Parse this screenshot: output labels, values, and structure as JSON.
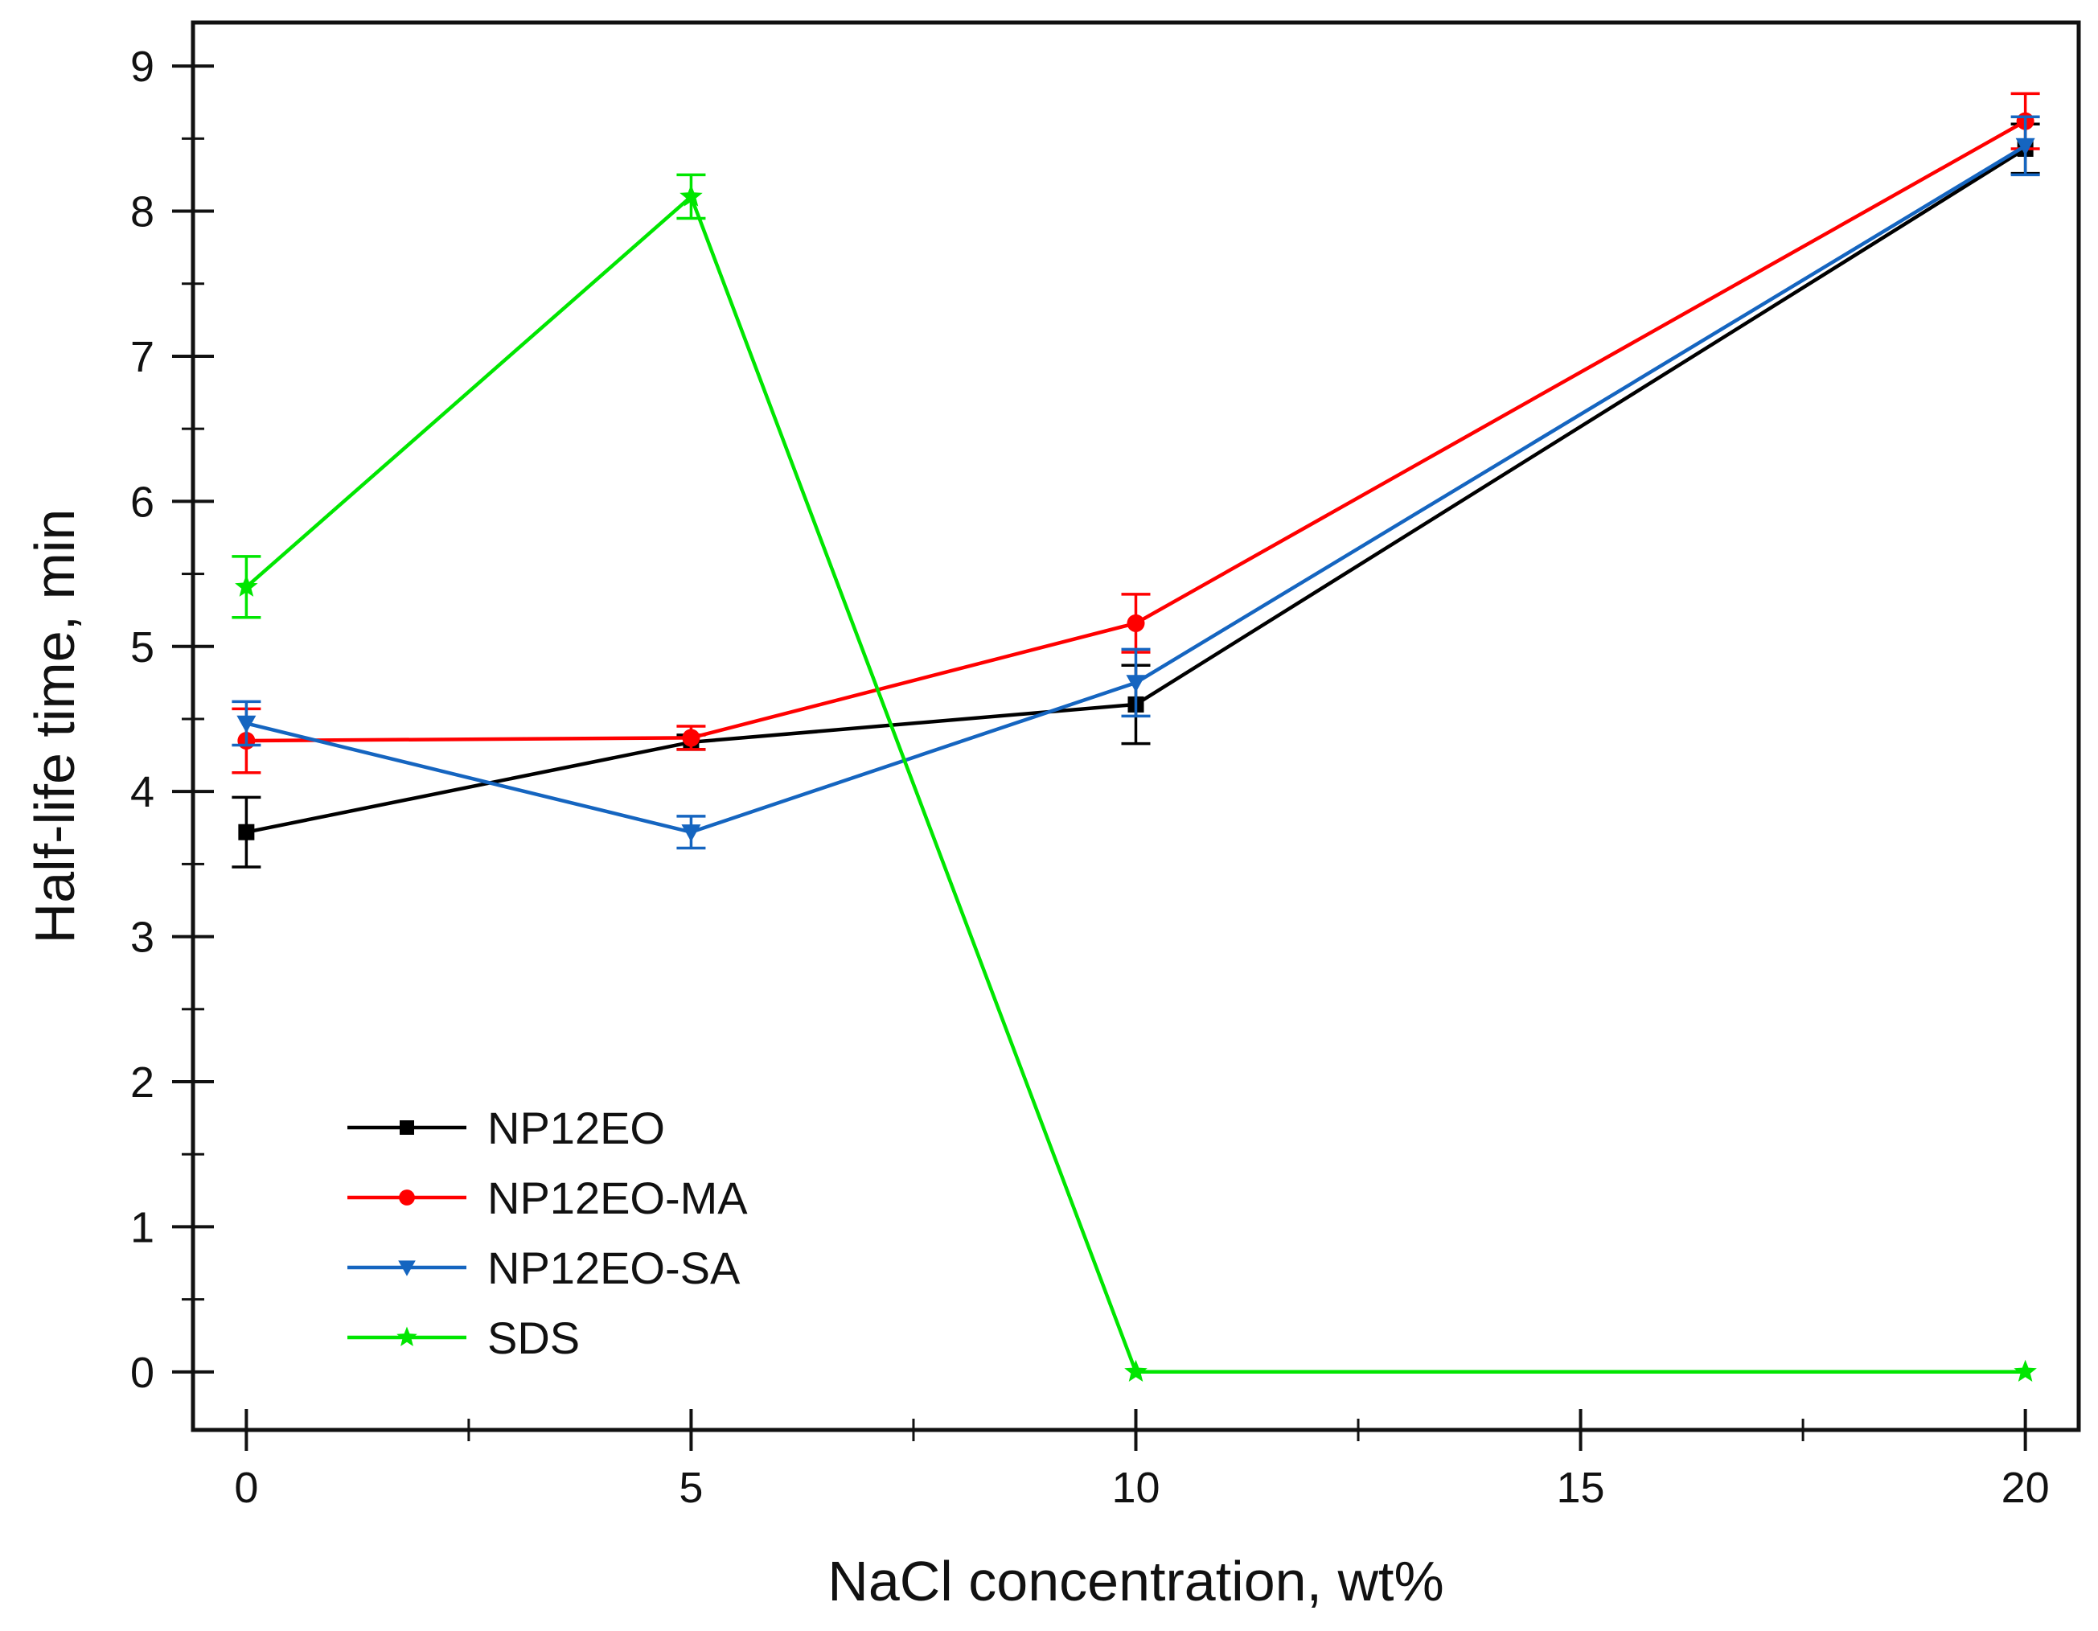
{
  "chart_data": {
    "type": "line",
    "title": "",
    "xlabel": "NaCl concentration, wt%",
    "ylabel": "Half-life time, min",
    "xlim": [
      -0.6,
      20.6
    ],
    "ylim": [
      -0.4,
      9.3
    ],
    "x_ticks": [
      0,
      5,
      10,
      15,
      20
    ],
    "y_ticks": [
      0,
      1,
      2,
      3,
      4,
      5,
      6,
      7,
      8,
      9
    ],
    "x_minor_ticks": [
      2.5,
      7.5,
      12.5,
      17.5
    ],
    "y_minor_ticks": [
      0.5,
      1.5,
      2.5,
      3.5,
      4.5,
      5.5,
      6.5,
      7.5,
      8.5
    ],
    "grid": false,
    "legend_position": "bottom-left",
    "series": [
      {
        "name": "NP12EO",
        "color": "#000000",
        "marker": "square",
        "x": [
          0,
          5,
          10,
          20
        ],
        "y": [
          3.72,
          4.34,
          4.6,
          8.43
        ],
        "err": [
          0.24,
          0.05,
          0.27,
          0.17
        ]
      },
      {
        "name": "NP12EO-MA",
        "color": "#ff0000",
        "marker": "circle",
        "x": [
          0,
          5,
          10,
          20
        ],
        "y": [
          4.35,
          4.37,
          5.16,
          8.62
        ],
        "err": [
          0.22,
          0.08,
          0.2,
          0.19
        ]
      },
      {
        "name": "NP12EO-SA",
        "color": "#1565c0",
        "marker": "triangle-down",
        "x": [
          0,
          5,
          10,
          20
        ],
        "y": [
          4.47,
          3.72,
          4.75,
          8.45
        ],
        "err": [
          0.15,
          0.11,
          0.23,
          0.2
        ]
      },
      {
        "name": "SDS",
        "color": "#00e600",
        "marker": "star",
        "x": [
          0,
          5,
          10,
          20
        ],
        "y": [
          5.41,
          8.1,
          0.0,
          0.0
        ],
        "err": [
          0.21,
          0.15,
          0.0,
          0.0
        ]
      }
    ]
  }
}
